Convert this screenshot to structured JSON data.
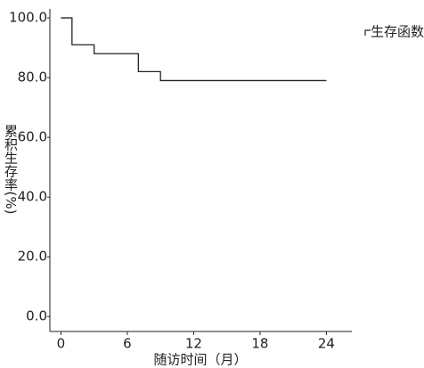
{
  "chart_data": {
    "type": "line",
    "step": "post",
    "x_label": "随访时间（月）",
    "y_label": "累积生存率(%)",
    "series": [
      {
        "name": "生存函数",
        "color": "#222222",
        "x": [
          0,
          1,
          3,
          7,
          9,
          24
        ],
        "values": [
          100,
          91,
          88,
          82,
          79,
          79
        ]
      }
    ],
    "xlim": [
      -1,
      26.3
    ],
    "xticks": [
      0,
      6,
      12,
      18,
      24
    ],
    "ylim": [
      -5,
      103
    ],
    "yticks": [
      {
        "value": 0,
        "label": "0.0"
      },
      {
        "value": 20,
        "label": "20.0"
      },
      {
        "value": 40,
        "label": "40.0"
      },
      {
        "value": 60,
        "label": "60.0"
      },
      {
        "value": 80,
        "label": "80.0"
      },
      {
        "value": 100,
        "label": "100.0"
      }
    ],
    "legend": "top-right"
  }
}
